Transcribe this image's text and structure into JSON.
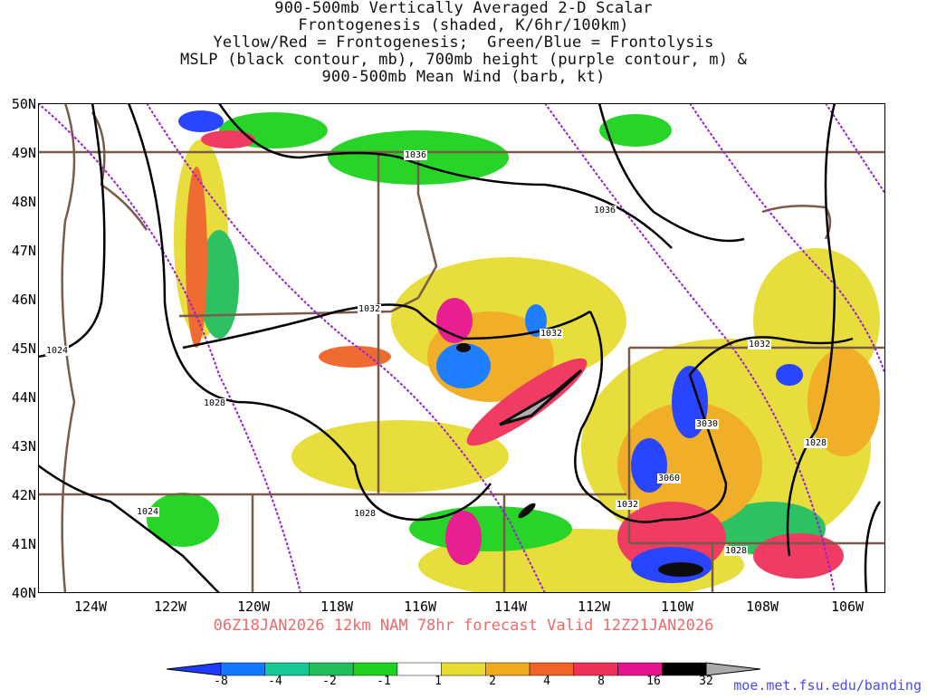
{
  "title": {
    "lines": [
      "900-500mb Vertically Averaged 2-D Scalar",
      "Frontogenesis (shaded, K/6hr/100km)",
      "Yellow/Red = Frontogenesis;  Green/Blue = Frontolysis",
      "MSLP (black contour, mb), 700mb height (purple contour, m) &",
      "900-500mb Mean Wind (barb, kt)"
    ]
  },
  "axes": {
    "latitudes": [
      "50N",
      "49N",
      "48N",
      "47N",
      "46N",
      "45N",
      "44N",
      "43N",
      "42N",
      "41N",
      "40N"
    ],
    "longitudes": [
      "124W",
      "122W",
      "120W",
      "118W",
      "116W",
      "114W",
      "112W",
      "110W",
      "108W",
      "106W"
    ]
  },
  "contour_labels": [
    "1036",
    "1036",
    "1032",
    "1032",
    "1032",
    "1028",
    "1028",
    "1028",
    "1024",
    "1024",
    "1032",
    "1028",
    "3030",
    "3060"
  ],
  "valid_line": "06Z18JAN2026 12km NAM 78hr forecast Valid 12Z21JAN2026",
  "colorbar": {
    "labels": [
      "-8",
      "-4",
      "-2",
      "-1",
      "1",
      "2",
      "4",
      "8",
      "16",
      "32"
    ],
    "colors": [
      "#1e3cff",
      "#1478ff",
      "#16c896",
      "#22be5a",
      "#1ed21e",
      "#ffffff",
      "#e6dc32",
      "#f0aa1e",
      "#f06428",
      "#f0325a",
      "#e6148c",
      "#000000",
      "#aaaaaa"
    ]
  },
  "credit": "moe.met.fsu.edu/banding"
}
